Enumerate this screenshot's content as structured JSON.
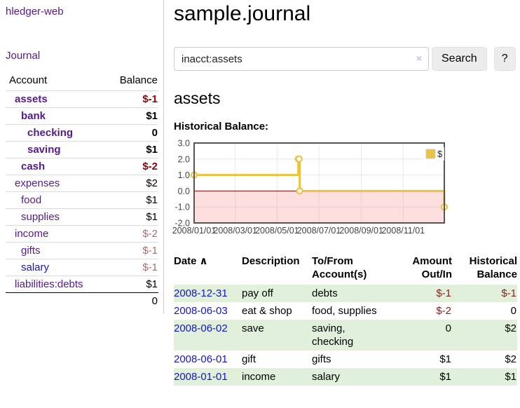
{
  "app": {
    "title": "hledger-web"
  },
  "colors": {
    "link-visited": "#551a8b",
    "link": "#1414cc",
    "negative": "#8b2121",
    "negative-strong": "#8f0000",
    "negative-dim": "#b36a6a",
    "row-positive-bg": "#e0f0db",
    "chart-series": "#edc240",
    "chart-negative-fill": "#f56e6e",
    "chart-zero-line": "#8b0000",
    "chart-border": "#545454",
    "grid-line": "#e8e8e8",
    "button-bg": "#ececec",
    "clear-icon": "#c9c2dd"
  },
  "sidebar": {
    "journal_label": "Journal",
    "headers": {
      "account": "Account",
      "balance": "Balance"
    },
    "accounts": [
      {
        "name": "assets",
        "level": 1,
        "balance": "$-1",
        "in_filter": true,
        "balance_tone": "strong-negative",
        "link_style": "visited"
      },
      {
        "name": "bank",
        "level": 2,
        "balance": "$1",
        "in_filter": true,
        "balance_tone": "",
        "link_style": "visited"
      },
      {
        "name": "checking",
        "level": 3,
        "balance": "0",
        "in_filter": true,
        "balance_tone": "",
        "link_style": "visited"
      },
      {
        "name": "saving",
        "level": 3,
        "balance": "$1",
        "in_filter": true,
        "balance_tone": "",
        "link_style": "visited"
      },
      {
        "name": "cash",
        "level": 2,
        "balance": "$-2",
        "in_filter": true,
        "balance_tone": "strong-negative",
        "link_style": "visited"
      },
      {
        "name": "expenses",
        "level": 1,
        "balance": "$2",
        "in_filter": false,
        "balance_tone": "",
        "link_style": "visited"
      },
      {
        "name": "food",
        "level": 2,
        "balance": "$1",
        "in_filter": false,
        "balance_tone": "",
        "link_style": "visited"
      },
      {
        "name": "supplies",
        "level": 2,
        "balance": "$1",
        "in_filter": false,
        "balance_tone": "",
        "link_style": "visited"
      },
      {
        "name": "income",
        "level": 1,
        "balance": "$-2",
        "in_filter": false,
        "balance_tone": "dim-negative",
        "link_style": "visited"
      },
      {
        "name": "gifts",
        "level": 2,
        "balance": "$-1",
        "in_filter": false,
        "balance_tone": "dim-negative",
        "link_style": "visited"
      },
      {
        "name": "salary",
        "level": 2,
        "balance": "$-1",
        "in_filter": false,
        "balance_tone": "dim-negative",
        "link_style": "unvisited"
      },
      {
        "name": "liabilities:debts",
        "level": 1,
        "balance": "$1",
        "in_filter": false,
        "balance_tone": "",
        "link_style": "visited"
      }
    ],
    "total": "0"
  },
  "main": {
    "title": "sample.journal",
    "search": {
      "value": "inacct:assets",
      "clear_icon": "×",
      "button_label": "Search",
      "help_label": "?"
    },
    "account_heading": "assets",
    "chart_label": "Historical Balance:"
  },
  "chart_data": {
    "type": "line",
    "style": "step-after",
    "title": "Historical Balance",
    "series": [
      {
        "name": "$",
        "points": [
          [
            "2008-01-01",
            1
          ],
          [
            "2008-06-01",
            2
          ],
          [
            "2008-06-02",
            2
          ],
          [
            "2008-06-03",
            0
          ],
          [
            "2008-12-31",
            -1
          ]
        ]
      }
    ],
    "x_range": [
      "2008-01-01",
      "2008-12-31"
    ],
    "x_ticks": [
      {
        "date": "2008-01-01",
        "label": "2008/01/01"
      },
      {
        "date": "2008-03-01",
        "label": "2008/03/01"
      },
      {
        "date": "2008-05-01",
        "label": "2008/05/01"
      },
      {
        "date": "2008-07-01",
        "label": "2008/07/01"
      },
      {
        "date": "2008-09-01",
        "label": "2008/09/01"
      },
      {
        "date": "2008-11-01",
        "label": "2008/11/01"
      }
    ],
    "y_ticks": [
      3,
      2,
      1,
      0,
      -1,
      -2
    ],
    "y_tick_labels": [
      "3.0",
      "2.0",
      "1.0",
      "0.0",
      "-1.0",
      "-2.0"
    ],
    "ylim": [
      -2,
      3
    ],
    "legend": {
      "label": "$",
      "position": "top-right"
    },
    "grid": true,
    "negative_region_shaded": true,
    "zero_line": true
  },
  "register": {
    "headers": {
      "date": "Date",
      "sort_icon": "∧",
      "description": "Description",
      "account": "To/From Account(s)",
      "amount": "Amount Out/In",
      "balance": "Historical Balance"
    },
    "rows": [
      {
        "date": "2008-12-31",
        "description": "pay off",
        "accounts": "debts",
        "amount": "$-1",
        "balance": "$-1",
        "amount_negative": true,
        "balance_negative": true
      },
      {
        "date": "2008-06-03",
        "description": "eat & shop",
        "accounts": "food, supplies",
        "amount": "$-2",
        "balance": "0",
        "amount_negative": true,
        "balance_negative": false
      },
      {
        "date": "2008-06-02",
        "description": "save",
        "accounts": "saving, checking",
        "amount": "0",
        "balance": "$2",
        "amount_negative": false,
        "balance_negative": false
      },
      {
        "date": "2008-06-01",
        "description": "gift",
        "accounts": "gifts",
        "amount": "$1",
        "balance": "$2",
        "amount_negative": false,
        "balance_negative": false
      },
      {
        "date": "2008-01-01",
        "description": "income",
        "accounts": "salary",
        "amount": "$1",
        "balance": "$1",
        "amount_negative": false,
        "balance_negative": false
      }
    ]
  }
}
